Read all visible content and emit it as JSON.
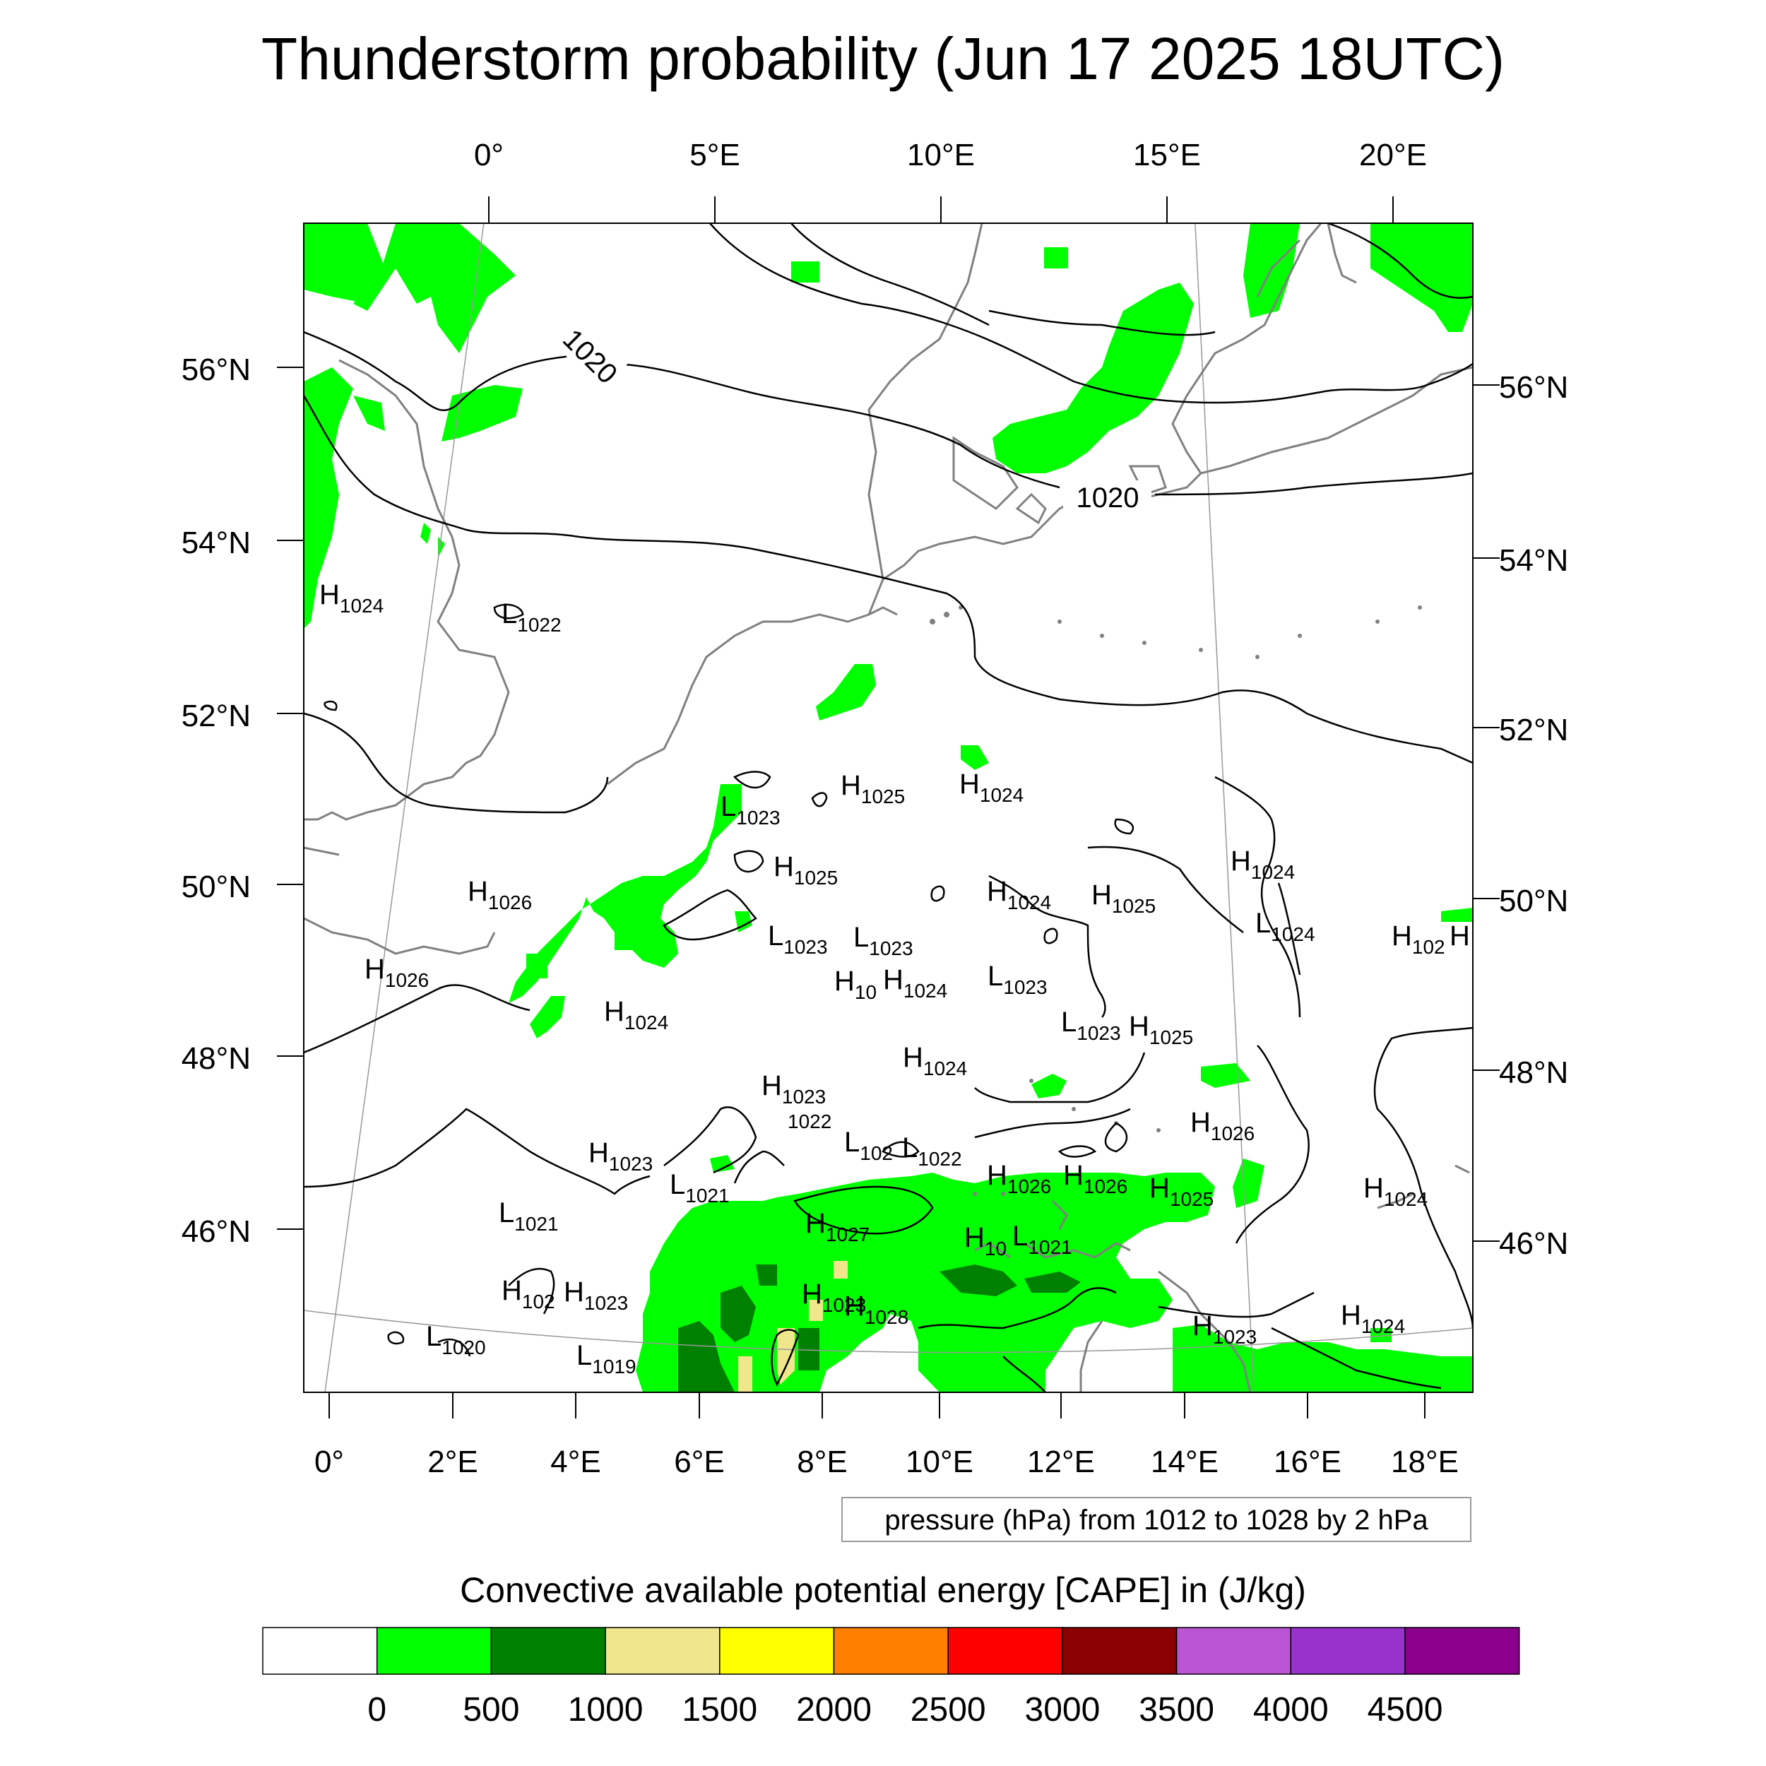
{
  "title": "Thunderstorm probability (Jun 17 2025 18UTC)",
  "colorbar": {
    "title": "Convective available potential energy [CAPE] in (J/kg)",
    "colors": [
      "#ffffff",
      "#00ff00",
      "#008000",
      "#f0e68c",
      "#ffff00",
      "#ff8000",
      "#ff0000",
      "#8b0000",
      "#ba55d3",
      "#9932cc",
      "#8b008b"
    ],
    "tick_labels": [
      "0",
      "500",
      "1000",
      "1500",
      "2000",
      "2500",
      "3000",
      "3500",
      "4000",
      "4500"
    ]
  },
  "contour_note": "pressure (hPa) from 1012 to 1028 by 2 hPa",
  "axes": {
    "top_lon": [
      "0°",
      "5°E",
      "10°E",
      "15°E",
      "20°E"
    ],
    "bottom_lon": [
      "0°",
      "2°E",
      "4°E",
      "6°E",
      "8°E",
      "10°E",
      "12°E",
      "14°E",
      "16°E",
      "18°E"
    ],
    "left_lat": [
      "56°N",
      "54°N",
      "52°N",
      "50°N",
      "48°N",
      "46°N"
    ],
    "right_lat": [
      "56°N",
      "54°N",
      "52°N",
      "50°N",
      "48°N",
      "46°N"
    ]
  },
  "isobar_labels": [
    "1020",
    "1020"
  ],
  "pressure_centers": [
    {
      "t": "H",
      "v": "1024"
    },
    {
      "t": "L",
      "v": "1022"
    },
    {
      "t": "H",
      "v": "1025"
    },
    {
      "t": "H",
      "v": "1024"
    },
    {
      "t": "L",
      "v": "1023"
    },
    {
      "t": "H",
      "v": "1025"
    },
    {
      "t": "H",
      "v": "1026"
    },
    {
      "t": "H",
      "v": "1024"
    },
    {
      "t": "H",
      "v": "1025"
    },
    {
      "t": "H",
      "v": "1024"
    },
    {
      "t": "L",
      "v": "1024"
    },
    {
      "t": "H",
      "v": "102"
    },
    {
      "t": "H",
      "v": ""
    },
    {
      "t": "L",
      "v": "1023"
    },
    {
      "t": "L",
      "v": "1023"
    },
    {
      "t": "H",
      "v": "1026"
    },
    {
      "t": "H",
      "v": "10"
    },
    {
      "t": "H",
      "v": "1024"
    },
    {
      "t": "L",
      "v": "1023"
    },
    {
      "t": "H",
      "v": "1024"
    },
    {
      "t": "L",
      "v": "1023"
    },
    {
      "t": "H",
      "v": "1025"
    },
    {
      "t": "H",
      "v": "1024"
    },
    {
      "t": "H",
      "v": "1023"
    },
    {
      "t": "",
      "v": "1022"
    },
    {
      "t": "H",
      "v": "1026"
    },
    {
      "t": "H",
      "v": "1023"
    },
    {
      "t": "L",
      "v": "102"
    },
    {
      "t": "L",
      "v": "1022"
    },
    {
      "t": "L",
      "v": "1021"
    },
    {
      "t": "H",
      "v": "1026"
    },
    {
      "t": "H",
      "v": "1026"
    },
    {
      "t": "H",
      "v": "1025"
    },
    {
      "t": "L",
      "v": "1021"
    },
    {
      "t": "H",
      "v": "1027"
    },
    {
      "t": "H",
      "v": "10"
    },
    {
      "t": "L",
      "v": "1021"
    },
    {
      "t": "H",
      "v": "1023"
    },
    {
      "t": "H",
      "v": "102"
    },
    {
      "t": "H",
      "v": "1023"
    },
    {
      "t": "H",
      "v": "1028"
    },
    {
      "t": "L",
      "v": "1020"
    },
    {
      "t": "L",
      "v": "1019"
    },
    {
      "t": "H",
      "v": "1023"
    },
    {
      "t": "H",
      "v": "1024"
    },
    {
      "t": "H",
      "v": "1024"
    }
  ]
}
